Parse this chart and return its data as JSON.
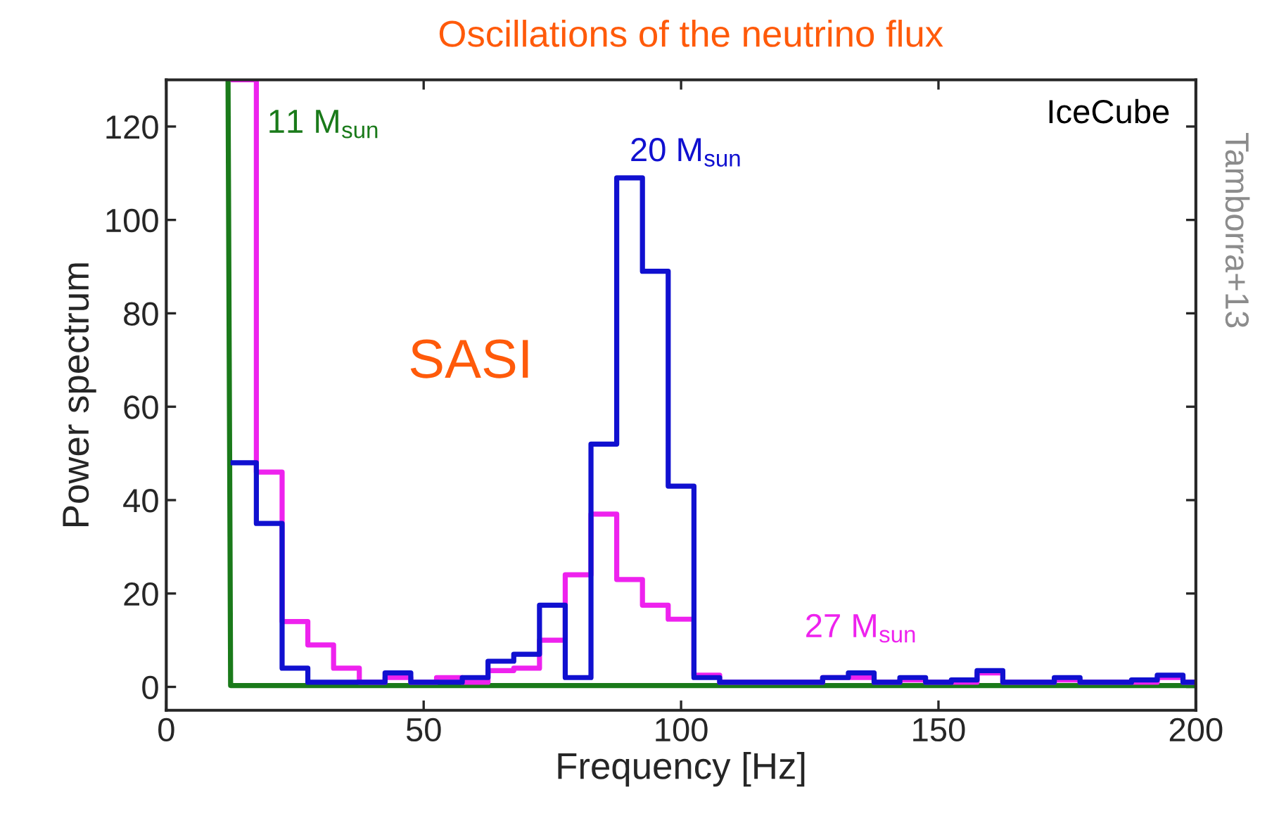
{
  "chart_data": {
    "type": "histogram",
    "title": "Oscillations of the neutrino flux",
    "xlabel": "Frequency [Hz]",
    "ylabel": "Power spectrum",
    "annotations": [
      "SASI",
      "IceCube",
      "Tamborra+13"
    ],
    "xlim": [
      0,
      200
    ],
    "ylim": [
      -5,
      130
    ],
    "xticks": [
      0,
      50,
      100,
      150,
      200
    ],
    "yticks": [
      0,
      20,
      40,
      60,
      80,
      100,
      120
    ],
    "grid": false,
    "legend": false,
    "bins": [
      12.5,
      17.5,
      22.5,
      27.5,
      32.5,
      37.5,
      42.5,
      47.5,
      52.5,
      57.5,
      62.5,
      67.5,
      72.5,
      77.5,
      82.5,
      87.5,
      92.5,
      97.5,
      102.5,
      107.5,
      112.5,
      117.5,
      122.5,
      127.5,
      132.5,
      137.5,
      142.5,
      147.5,
      152.5,
      157.5,
      162.5,
      167.5,
      172.5,
      177.5,
      182.5,
      187.5,
      192.5,
      197.5,
      200
    ],
    "series": [
      {
        "name": "11 M$_{sun}$",
        "color": "#1a7a1a",
        "type": "line",
        "x": [
          12,
          12.5,
          200
        ],
        "values": [
          130,
          0.3,
          0.3
        ]
      },
      {
        "name": "27 M$_{sun}$",
        "color": "#ee22ee",
        "values": [
          130,
          46,
          14,
          9,
          4,
          1,
          2,
          1,
          2,
          1,
          3.5,
          4,
          10,
          24,
          37,
          23,
          17.5,
          14.5,
          2.5,
          1,
          1,
          1,
          1,
          2,
          2,
          1,
          1.5,
          1,
          1,
          3,
          1,
          1,
          1.5,
          1,
          1,
          1,
          2,
          1
        ]
      },
      {
        "name": "20 M$_{sun}$",
        "color": "#1010d0",
        "values": [
          48,
          35,
          4,
          1,
          1,
          1,
          3,
          1,
          1,
          2,
          5.5,
          7,
          17.5,
          2,
          52,
          109,
          89,
          43,
          2,
          1,
          1,
          1,
          1,
          2,
          3,
          1,
          2,
          1,
          1.5,
          3.5,
          1,
          1,
          2,
          1,
          1,
          1.5,
          2.5,
          1
        ]
      }
    ]
  }
}
